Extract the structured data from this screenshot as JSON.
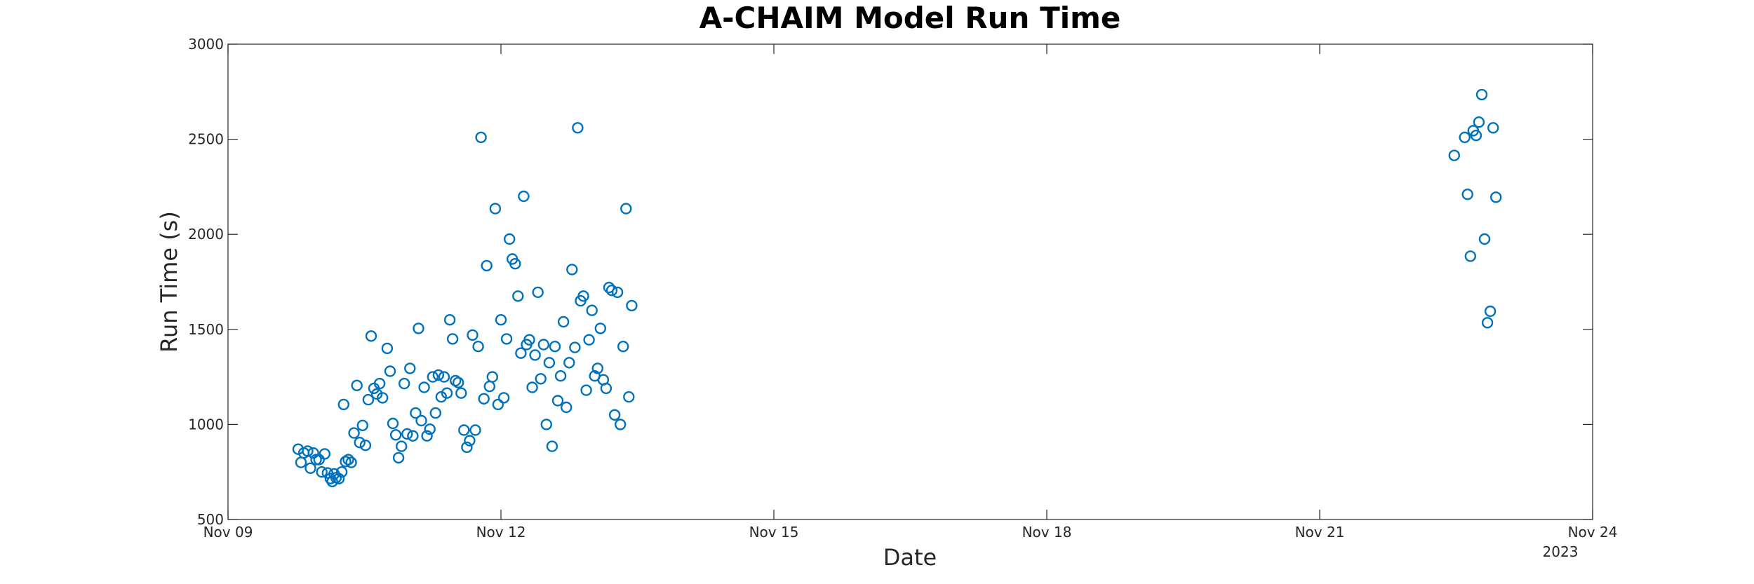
{
  "chart_data": {
    "type": "scatter",
    "title": "A-CHAIM Model Run Time",
    "xlabel": "Date",
    "ylabel": "Run Time (s)",
    "xlim": [
      "2022-11-09",
      "2022-11-24"
    ],
    "ylim": [
      500,
      3000
    ],
    "x_ticks": [
      "2022-11-09",
      "2022-11-12",
      "2022-11-15",
      "2022-11-18",
      "2022-11-21",
      "2022-11-24"
    ],
    "x_tick_labels": [
      "Nov 09",
      "Nov 12",
      "Nov 15",
      "Nov 18",
      "Nov 21",
      "Nov 24"
    ],
    "x_secondary_label": "2023",
    "y_ticks": [
      500,
      1000,
      1500,
      2000,
      2500,
      3000
    ],
    "y_tick_labels": [
      "500",
      "1000",
      "1500",
      "2000",
      "2500",
      "3000"
    ],
    "grid": false,
    "marker": "open-circle",
    "color": "#0072BD",
    "points": [
      [
        "2022-11-09T18:30",
        870
      ],
      [
        "2022-11-09T19:15",
        800
      ],
      [
        "2022-11-09T20:00",
        850
      ],
      [
        "2022-11-09T21:00",
        860
      ],
      [
        "2022-11-09T21:45",
        770
      ],
      [
        "2022-11-09T22:30",
        850
      ],
      [
        "2022-11-09T23:15",
        815
      ],
      [
        "2022-11-10T00:00",
        815
      ],
      [
        "2022-11-10T00:45",
        750
      ],
      [
        "2022-11-10T01:30",
        845
      ],
      [
        "2022-11-10T02:15",
        745
      ],
      [
        "2022-11-10T03:00",
        715
      ],
      [
        "2022-11-10T03:30",
        700
      ],
      [
        "2022-11-10T04:00",
        740
      ],
      [
        "2022-11-10T04:30",
        720
      ],
      [
        "2022-11-10T05:15",
        715
      ],
      [
        "2022-11-10T06:00",
        750
      ],
      [
        "2022-11-10T06:30",
        1105
      ],
      [
        "2022-11-10T07:00",
        805
      ],
      [
        "2022-11-10T07:45",
        815
      ],
      [
        "2022-11-10T08:30",
        800
      ],
      [
        "2022-11-10T09:15",
        955
      ],
      [
        "2022-11-10T10:00",
        1205
      ],
      [
        "2022-11-10T10:45",
        905
      ],
      [
        "2022-11-10T11:30",
        995
      ],
      [
        "2022-11-10T12:15",
        890
      ],
      [
        "2022-11-10T13:00",
        1130
      ],
      [
        "2022-11-10T13:45",
        1465
      ],
      [
        "2022-11-10T14:30",
        1190
      ],
      [
        "2022-11-10T15:15",
        1160
      ],
      [
        "2022-11-10T16:00",
        1215
      ],
      [
        "2022-11-10T16:45",
        1140
      ],
      [
        "2022-11-10T18:00",
        1400
      ],
      [
        "2022-11-10T18:45",
        1280
      ],
      [
        "2022-11-10T19:30",
        1005
      ],
      [
        "2022-11-10T20:15",
        945
      ],
      [
        "2022-11-10T21:00",
        825
      ],
      [
        "2022-11-10T21:45",
        885
      ],
      [
        "2022-11-10T22:30",
        1215
      ],
      [
        "2022-11-10T23:15",
        950
      ],
      [
        "2022-11-11T00:00",
        1295
      ],
      [
        "2022-11-11T00:45",
        940
      ],
      [
        "2022-11-11T01:30",
        1060
      ],
      [
        "2022-11-11T02:15",
        1505
      ],
      [
        "2022-11-11T03:00",
        1020
      ],
      [
        "2022-11-11T03:45",
        1195
      ],
      [
        "2022-11-11T04:30",
        940
      ],
      [
        "2022-11-11T05:15",
        975
      ],
      [
        "2022-11-11T06:00",
        1250
      ],
      [
        "2022-11-11T06:45",
        1060
      ],
      [
        "2022-11-11T07:30",
        1260
      ],
      [
        "2022-11-11T08:15",
        1145
      ],
      [
        "2022-11-11T09:00",
        1250
      ],
      [
        "2022-11-11T09:45",
        1165
      ],
      [
        "2022-11-11T10:30",
        1550
      ],
      [
        "2022-11-11T11:15",
        1450
      ],
      [
        "2022-11-11T12:00",
        1230
      ],
      [
        "2022-11-11T12:45",
        1220
      ],
      [
        "2022-11-11T13:30",
        1165
      ],
      [
        "2022-11-11T14:15",
        970
      ],
      [
        "2022-11-11T15:00",
        880
      ],
      [
        "2022-11-11T15:45",
        915
      ],
      [
        "2022-11-11T16:30",
        1470
      ],
      [
        "2022-11-11T17:15",
        970
      ],
      [
        "2022-11-11T18:00",
        1410
      ],
      [
        "2022-11-11T18:45",
        2510
      ],
      [
        "2022-11-11T19:30",
        1135
      ],
      [
        "2022-11-11T20:15",
        1835
      ],
      [
        "2022-11-11T21:00",
        1200
      ],
      [
        "2022-11-11T21:45",
        1250
      ],
      [
        "2022-11-11T22:30",
        2135
      ],
      [
        "2022-11-11T23:15",
        1105
      ],
      [
        "2022-11-12T00:00",
        1550
      ],
      [
        "2022-11-12T00:45",
        1140
      ],
      [
        "2022-11-12T01:30",
        1450
      ],
      [
        "2022-11-12T02:15",
        1975
      ],
      [
        "2022-11-12T03:00",
        1870
      ],
      [
        "2022-11-12T03:45",
        1845
      ],
      [
        "2022-11-12T04:30",
        1675
      ],
      [
        "2022-11-12T05:15",
        1375
      ],
      [
        "2022-11-12T06:00",
        2200
      ],
      [
        "2022-11-12T06:45",
        1420
      ],
      [
        "2022-11-12T07:30",
        1445
      ],
      [
        "2022-11-12T08:15",
        1195
      ],
      [
        "2022-11-12T09:00",
        1365
      ],
      [
        "2022-11-12T09:45",
        1695
      ],
      [
        "2022-11-12T10:30",
        1240
      ],
      [
        "2022-11-12T11:15",
        1420
      ],
      [
        "2022-11-12T12:00",
        1000
      ],
      [
        "2022-11-12T12:45",
        1325
      ],
      [
        "2022-11-12T13:30",
        885
      ],
      [
        "2022-11-12T14:15",
        1410
      ],
      [
        "2022-11-12T15:00",
        1125
      ],
      [
        "2022-11-12T15:45",
        1255
      ],
      [
        "2022-11-12T16:30",
        1540
      ],
      [
        "2022-11-12T17:15",
        1090
      ],
      [
        "2022-11-12T18:00",
        1325
      ],
      [
        "2022-11-12T18:45",
        1815
      ],
      [
        "2022-11-12T19:30",
        1405
      ],
      [
        "2022-11-12T20:15",
        2560
      ],
      [
        "2022-11-12T21:00",
        1650
      ],
      [
        "2022-11-12T21:45",
        1675
      ],
      [
        "2022-11-12T22:30",
        1180
      ],
      [
        "2022-11-12T23:15",
        1445
      ],
      [
        "2022-11-13T00:00",
        1600
      ],
      [
        "2022-11-13T00:45",
        1255
      ],
      [
        "2022-11-13T01:30",
        1295
      ],
      [
        "2022-11-13T02:15",
        1505
      ],
      [
        "2022-11-13T03:00",
        1235
      ],
      [
        "2022-11-13T03:45",
        1190
      ],
      [
        "2022-11-13T04:30",
        1720
      ],
      [
        "2022-11-13T05:15",
        1705
      ],
      [
        "2022-11-13T06:00",
        1050
      ],
      [
        "2022-11-13T06:45",
        1695
      ],
      [
        "2022-11-13T07:30",
        1000
      ],
      [
        "2022-11-13T08:15",
        1410
      ],
      [
        "2022-11-13T09:00",
        2135
      ],
      [
        "2022-11-13T09:45",
        1145
      ],
      [
        "2022-11-13T10:30",
        1625
      ],
      [
        "2022-11-22T11:30",
        2415
      ],
      [
        "2022-11-22T14:15",
        2510
      ],
      [
        "2022-11-22T15:00",
        2210
      ],
      [
        "2022-11-22T15:45",
        1885
      ],
      [
        "2022-11-22T16:30",
        2545
      ],
      [
        "2022-11-22T17:15",
        2520
      ],
      [
        "2022-11-22T18:00",
        2590
      ],
      [
        "2022-11-22T18:45",
        2735
      ],
      [
        "2022-11-22T19:30",
        1975
      ],
      [
        "2022-11-22T20:15",
        1535
      ],
      [
        "2022-11-22T21:00",
        1595
      ],
      [
        "2022-11-22T21:45",
        2560
      ],
      [
        "2022-11-22T22:30",
        2195
      ]
    ]
  }
}
